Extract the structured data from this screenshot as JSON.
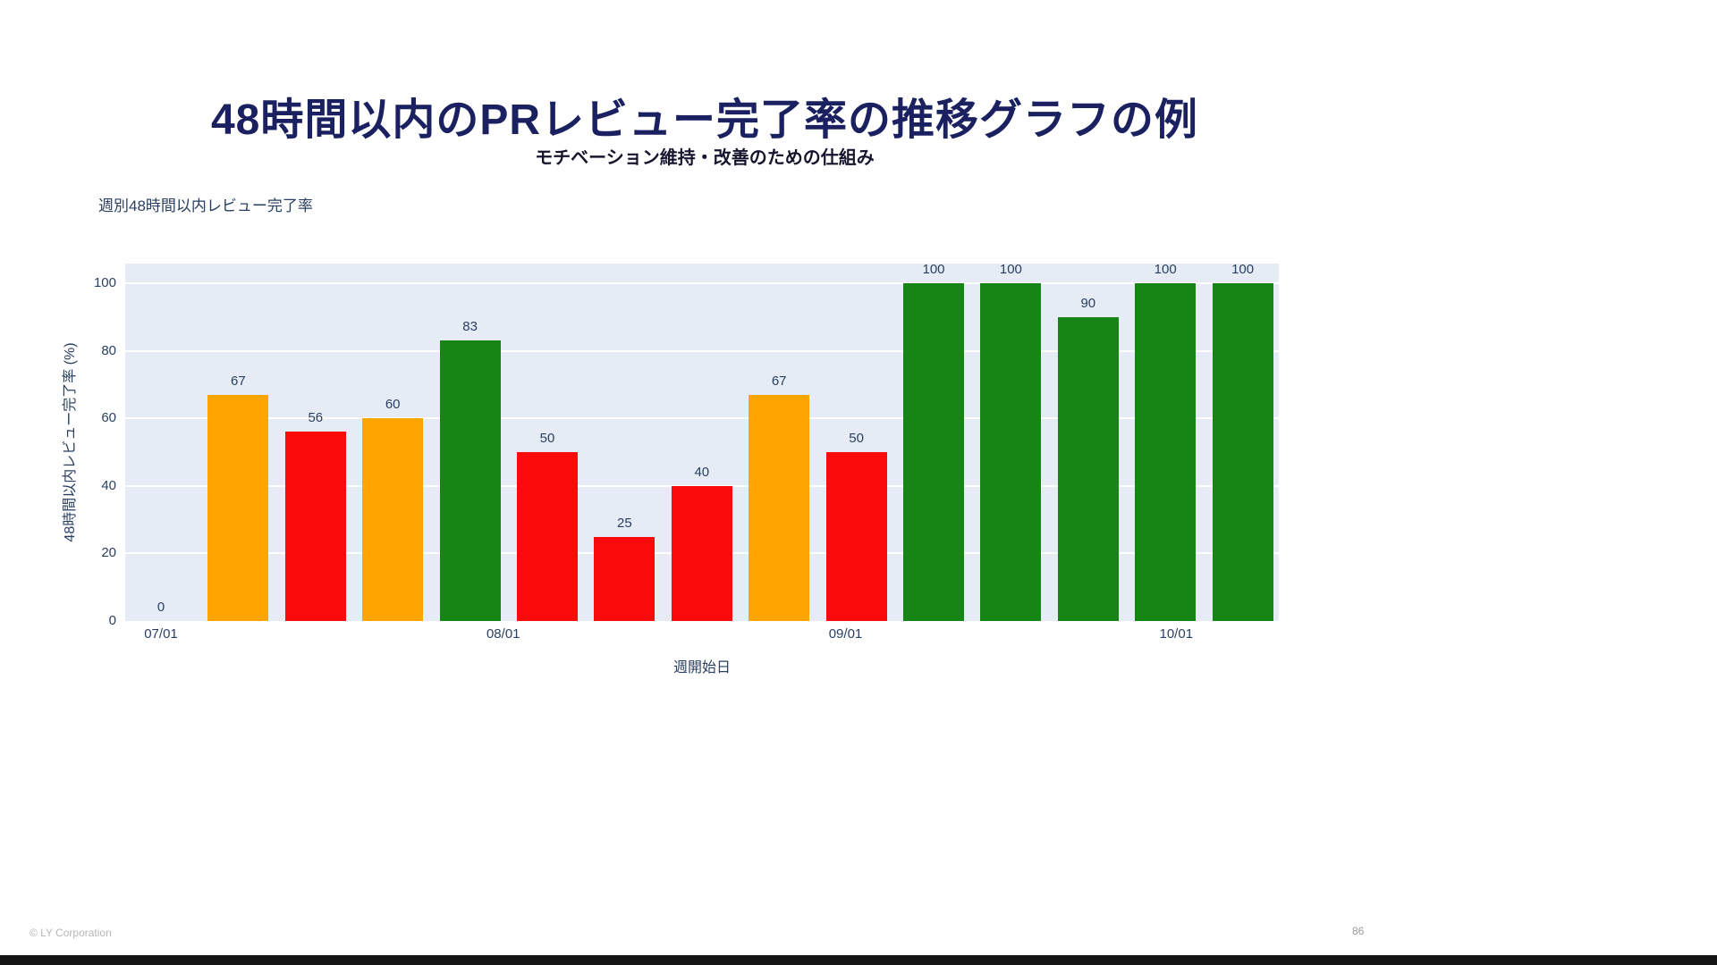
{
  "slide": {
    "title": "48時間以内のPRレビュー完了率の推移グラフの例",
    "subtitle": "モチベーション維持・改善のための仕組み"
  },
  "footer": {
    "copyright": "© LY Corporation",
    "page_number": "86"
  },
  "chart_data": {
    "type": "bar",
    "title": "週別48時間以内レビュー完了率",
    "xlabel": "週開始日",
    "ylabel": "48時間以内レビュー完了率 (%)",
    "ylim": [
      0,
      100
    ],
    "yticks": [
      0,
      20,
      40,
      60,
      80,
      100
    ],
    "grid": "horizontal white gridlines on light blue plot background",
    "legend": "none",
    "values": [
      0,
      67,
      56,
      60,
      83,
      50,
      25,
      40,
      67,
      50,
      100,
      100,
      90,
      100,
      100
    ],
    "bar_color_names": [
      "none",
      "orange",
      "red",
      "orange",
      "green",
      "red",
      "red",
      "red",
      "orange",
      "red",
      "green",
      "green",
      "green",
      "green",
      "green"
    ],
    "colors": {
      "orange": "#ffa500",
      "red": "#fb0a0a",
      "green": "#168516",
      "plot_background": "#e5ecf6",
      "gridline": "#ffffff",
      "axis_text": "#2a3f5f"
    },
    "x_ticks": [
      {
        "label": "07/01",
        "pos": 0
      },
      {
        "label": "08/01",
        "pos": 4.43
      },
      {
        "label": "09/01",
        "pos": 8.86
      },
      {
        "label": "10/01",
        "pos": 13.14
      }
    ]
  }
}
